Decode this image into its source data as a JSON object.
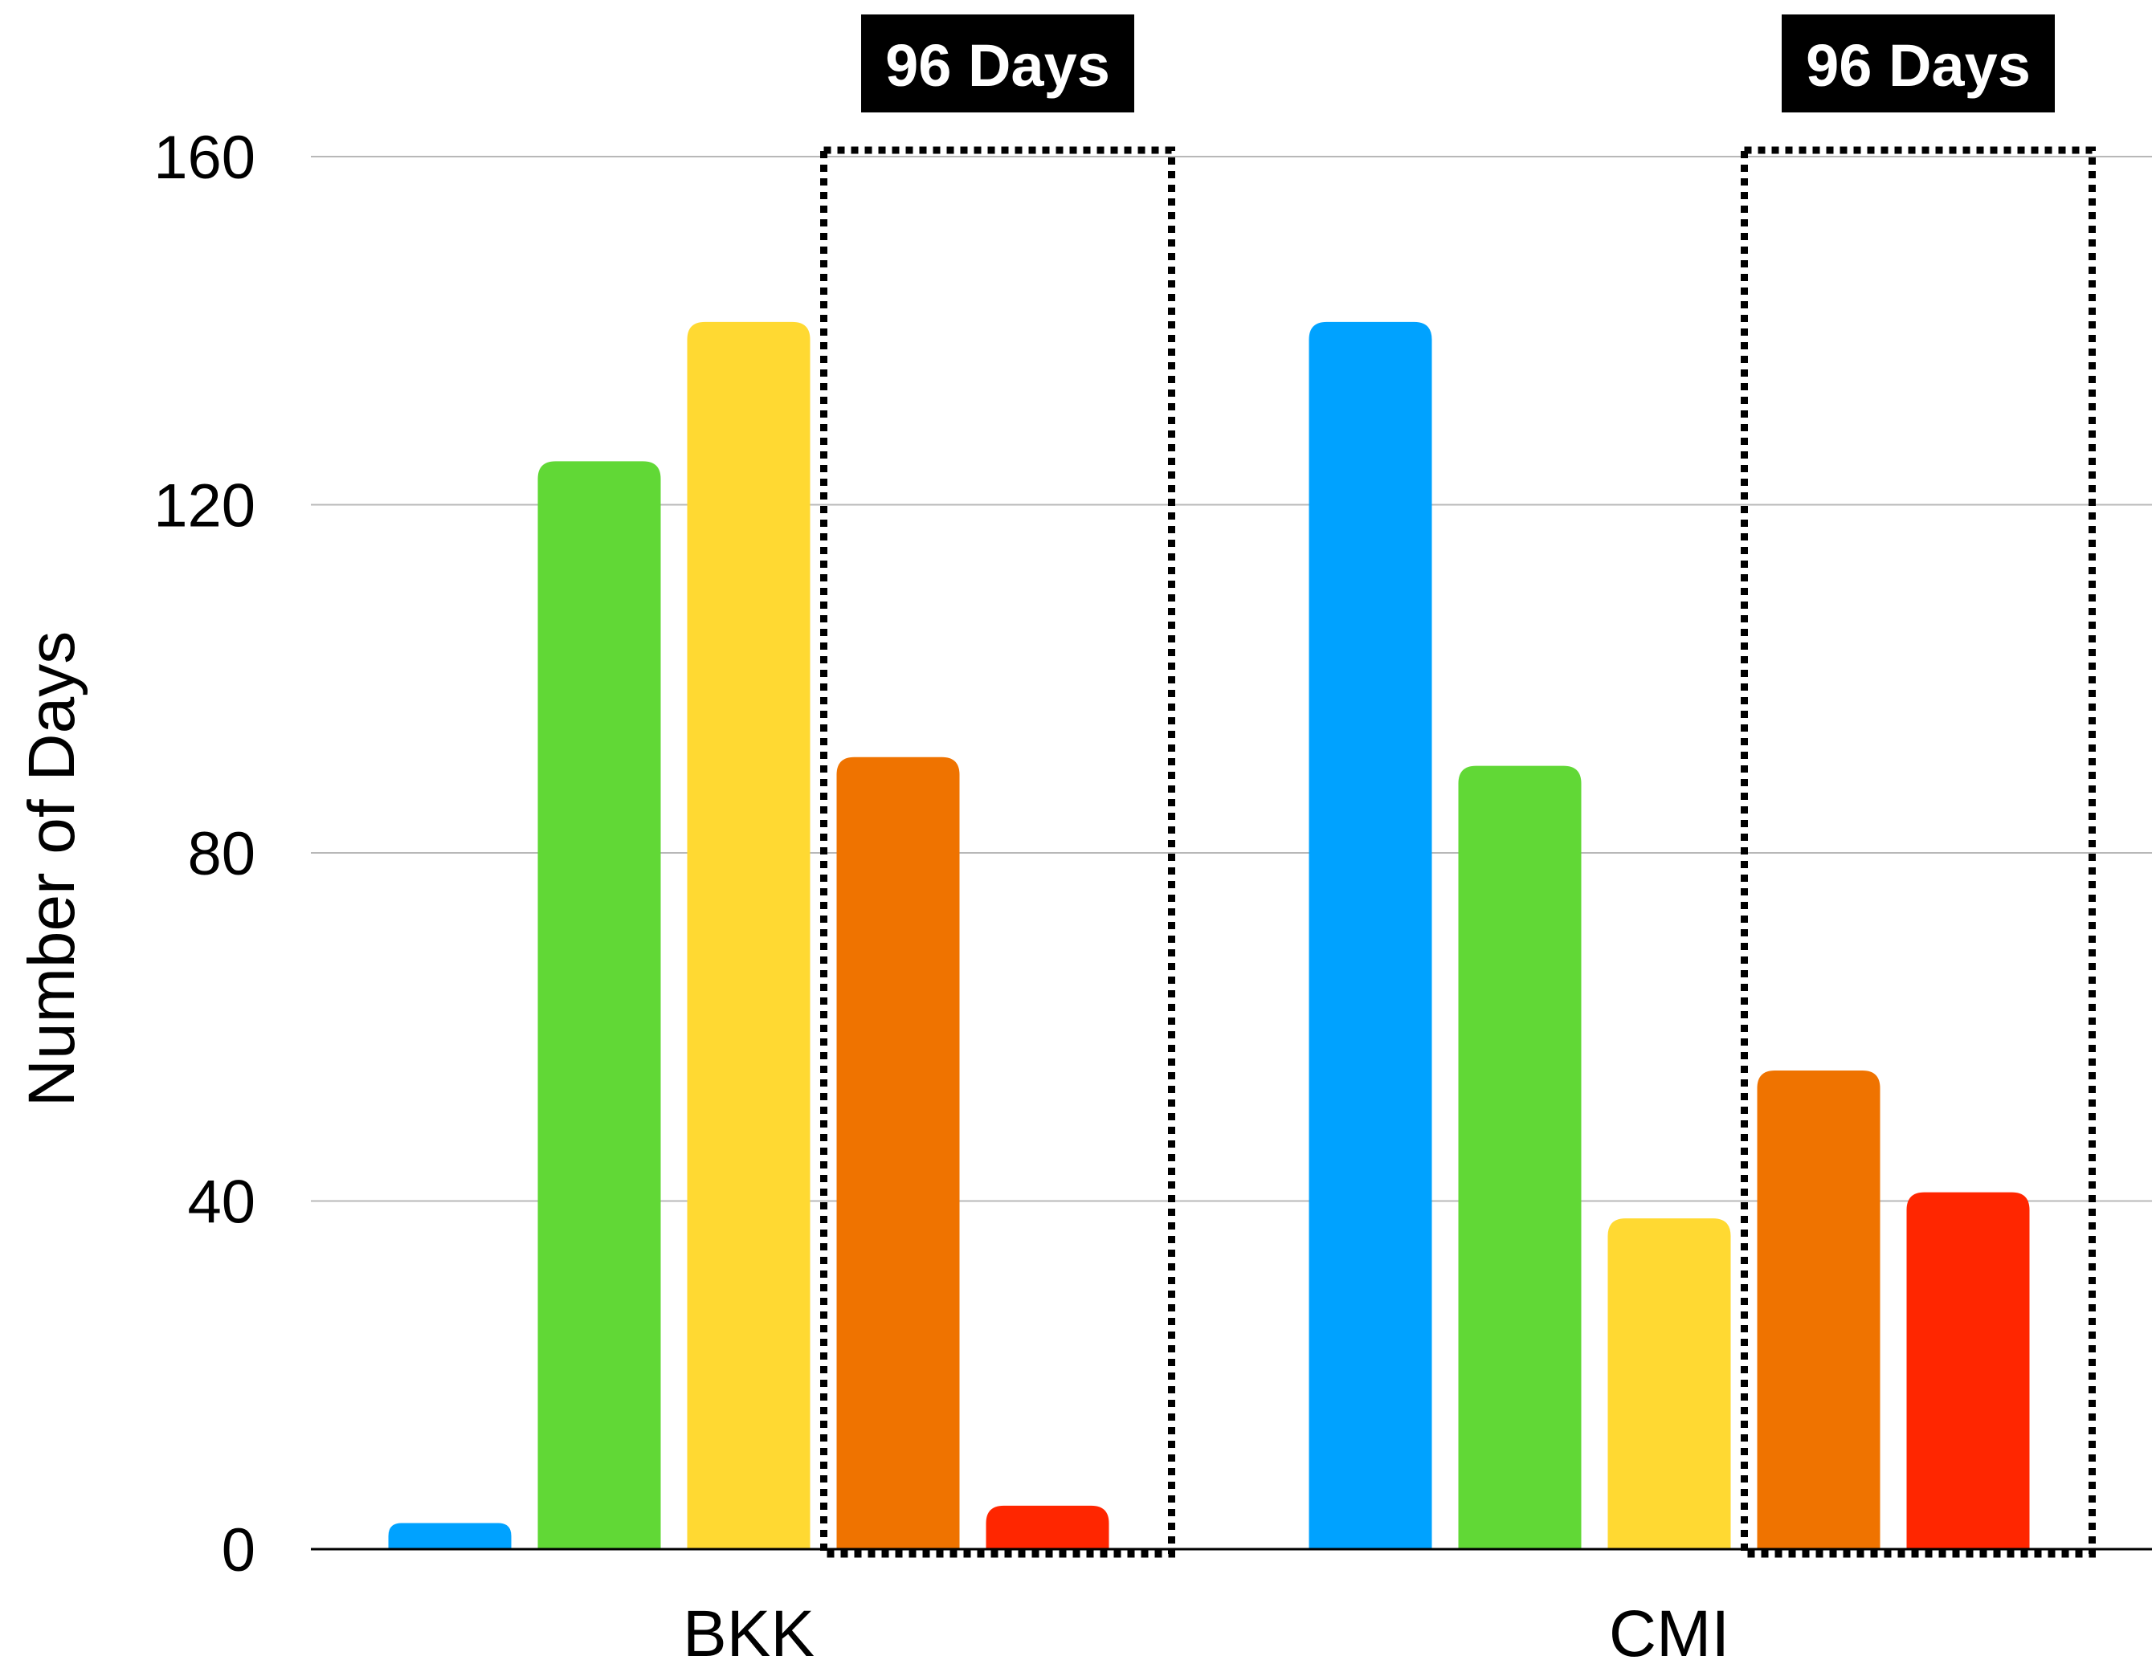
{
  "chart_data": {
    "type": "bar",
    "categories": [
      "BKK",
      "CMI"
    ],
    "series": [
      {
        "color": "#00A2FF",
        "values": [
          3,
          141
        ]
      },
      {
        "color": "#61D836",
        "values": [
          125,
          90
        ]
      },
      {
        "color": "#FFD932",
        "values": [
          141,
          38
        ]
      },
      {
        "color": "#EF7300",
        "values": [
          91,
          55
        ]
      },
      {
        "color": "#FF2600",
        "values": [
          5,
          41
        ]
      }
    ],
    "ylabel": "Number of Days",
    "xlabel": "",
    "ylim": [
      0,
      160
    ],
    "yticks": [
      0,
      40,
      80,
      120,
      160
    ],
    "grid": true,
    "legend": "none",
    "annotations": [
      {
        "category": "BKK",
        "series_span": [
          3,
          4
        ],
        "text": "96 Days",
        "box_top_value": 160,
        "style": "dotted"
      },
      {
        "category": "CMI",
        "series_span": [
          3,
          4
        ],
        "text": "96 Days",
        "box_top_value": 160,
        "style": "dotted"
      }
    ]
  }
}
